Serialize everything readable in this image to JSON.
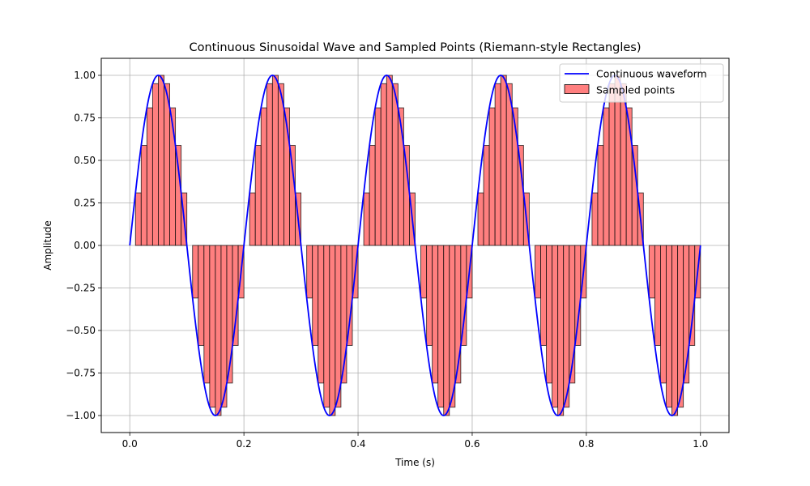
{
  "chart_data": {
    "type": "bar+line",
    "title": "Continuous Sinusoidal Wave and Sampled Points (Riemann-style Rectangles)",
    "xlabel": "Time (s)",
    "ylabel": "Amplitude",
    "xlim": [
      -0.05,
      1.05
    ],
    "ylim": [
      -1.1,
      1.1
    ],
    "grid": true,
    "x_ticks": [
      0.0,
      0.2,
      0.4,
      0.6,
      0.8,
      1.0
    ],
    "x_tick_labels": [
      "0.0",
      "0.2",
      "0.4",
      "0.6",
      "0.8",
      "1.0"
    ],
    "y_ticks": [
      -1.0,
      -0.75,
      -0.5,
      -0.25,
      0.0,
      0.25,
      0.5,
      0.75,
      1.0
    ],
    "y_tick_labels": [
      "−1.00",
      "−0.75",
      "−0.50",
      "−0.25",
      "0.00",
      "0.25",
      "0.50",
      "0.75",
      "1.00"
    ],
    "legend_position": "top-right",
    "series": [
      {
        "name": "Continuous waveform",
        "kind": "line",
        "function": "sin(2*pi*5*t)",
        "frequency_hz": 5,
        "t_range": [
          0.0,
          1.0
        ],
        "color": "#0000ff"
      },
      {
        "name": "Sampled points",
        "kind": "bar",
        "color": "#ff7f7f",
        "edgecolor": "#000000",
        "bar_width": 0.01,
        "sample_interval": 0.01,
        "x": [
          0.0,
          0.01,
          0.02,
          0.03,
          0.04,
          0.05,
          0.06,
          0.07,
          0.08,
          0.09,
          0.1,
          0.11,
          0.12,
          0.13,
          0.14,
          0.15,
          0.16,
          0.17,
          0.18,
          0.19,
          0.2,
          0.21,
          0.22,
          0.23,
          0.24,
          0.25,
          0.26,
          0.27,
          0.28,
          0.29,
          0.3,
          0.31,
          0.32,
          0.33,
          0.34,
          0.35,
          0.36,
          0.37,
          0.38,
          0.39,
          0.4,
          0.41,
          0.42,
          0.43,
          0.44,
          0.45,
          0.46,
          0.47,
          0.48,
          0.49,
          0.5,
          0.51,
          0.52,
          0.53,
          0.54,
          0.55,
          0.56,
          0.57,
          0.58,
          0.59,
          0.6,
          0.61,
          0.62,
          0.63,
          0.64,
          0.65,
          0.66,
          0.67,
          0.68,
          0.69,
          0.7,
          0.71,
          0.72,
          0.73,
          0.74,
          0.75,
          0.76,
          0.77,
          0.78,
          0.79,
          0.8,
          0.81,
          0.82,
          0.83,
          0.84,
          0.85,
          0.86,
          0.87,
          0.88,
          0.89,
          0.9,
          0.91,
          0.92,
          0.93,
          0.94,
          0.95,
          0.96,
          0.97,
          0.98,
          0.99
        ],
        "values": [
          0.0,
          0.309,
          0.588,
          0.809,
          0.951,
          1.0,
          0.951,
          0.809,
          0.588,
          0.309,
          0.0,
          -0.309,
          -0.588,
          -0.809,
          -0.951,
          -1.0,
          -0.951,
          -0.809,
          -0.588,
          -0.309,
          0.0,
          0.309,
          0.588,
          0.809,
          0.951,
          1.0,
          0.951,
          0.809,
          0.588,
          0.309,
          0.0,
          -0.309,
          -0.588,
          -0.809,
          -0.951,
          -1.0,
          -0.951,
          -0.809,
          -0.588,
          -0.309,
          0.0,
          0.309,
          0.588,
          0.809,
          0.951,
          1.0,
          0.951,
          0.809,
          0.588,
          0.309,
          0.0,
          -0.309,
          -0.588,
          -0.809,
          -0.951,
          -1.0,
          -0.951,
          -0.809,
          -0.588,
          -0.309,
          0.0,
          0.309,
          0.588,
          0.809,
          0.951,
          1.0,
          0.951,
          0.809,
          0.588,
          0.309,
          0.0,
          -0.309,
          -0.588,
          -0.809,
          -0.951,
          -1.0,
          -0.951,
          -0.809,
          -0.588,
          -0.309,
          0.0,
          0.309,
          0.588,
          0.809,
          0.951,
          1.0,
          0.951,
          0.809,
          0.588,
          0.309,
          0.0,
          -0.309,
          -0.588,
          -0.809,
          -0.951,
          -1.0,
          -0.951,
          -0.809,
          -0.588,
          -0.309
        ]
      }
    ]
  }
}
